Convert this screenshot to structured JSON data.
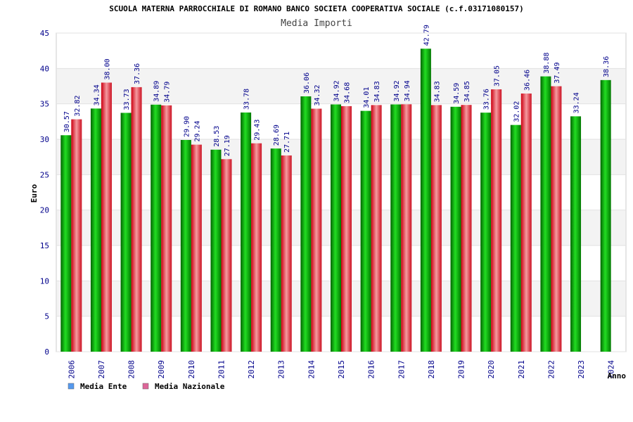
{
  "chart_data": {
    "type": "bar",
    "title": "SCUOLA MATERNA PARROCCHIALE DI ROMANO BANCO SOCIETA COOPERATIVA SOCIALE (c.f.03171080157)",
    "subtitle": "Media Importi",
    "xlabel": "Anno",
    "ylabel": "Euro",
    "ylim": [
      0,
      45
    ],
    "yticks": [
      0,
      5,
      10,
      15,
      20,
      25,
      30,
      35,
      40,
      45
    ],
    "categories": [
      "2006",
      "2007",
      "2008",
      "2009",
      "2010",
      "2011",
      "2012",
      "2013",
      "2014",
      "2015",
      "2016",
      "2017",
      "2018",
      "2019",
      "2020",
      "2021",
      "2022",
      "2023",
      "2024"
    ],
    "series": [
      {
        "name": "Media Ente",
        "color": "#00aa00",
        "legend_color": "#5599ee",
        "values": [
          30.57,
          34.34,
          33.73,
          34.89,
          29.9,
          28.53,
          33.78,
          28.69,
          36.06,
          34.92,
          34.01,
          34.92,
          42.79,
          34.59,
          33.76,
          32.02,
          38.88,
          33.24,
          38.36
        ],
        "labels": [
          "30.57",
          "34.34",
          "33.73",
          "34.89",
          "29.90",
          "28.53",
          "33.78",
          "28.69",
          "36.06",
          "34.92",
          "34.01",
          "34.92",
          "42.79",
          "34.59",
          "33.76",
          "32.02",
          "38.88",
          "33.24",
          "38.36"
        ]
      },
      {
        "name": "Media Nazionale",
        "color": "#dd2233",
        "legend_color": "#dd6699",
        "values": [
          32.82,
          38.0,
          37.36,
          34.79,
          29.24,
          27.19,
          29.43,
          27.71,
          34.32,
          34.68,
          34.83,
          34.94,
          34.83,
          34.85,
          37.05,
          36.46,
          37.49,
          null,
          null
        ],
        "labels": [
          "32.82",
          "38.00",
          "37.36",
          "34.79",
          "29.24",
          "27.19",
          "29.43",
          "27.71",
          "34.32",
          "34.68",
          "34.83",
          "34.94",
          "34.83",
          "34.85",
          "37.05",
          "36.46",
          "37.49",
          null,
          null
        ]
      }
    ],
    "legend_position": "bottom-left",
    "grid": true
  }
}
